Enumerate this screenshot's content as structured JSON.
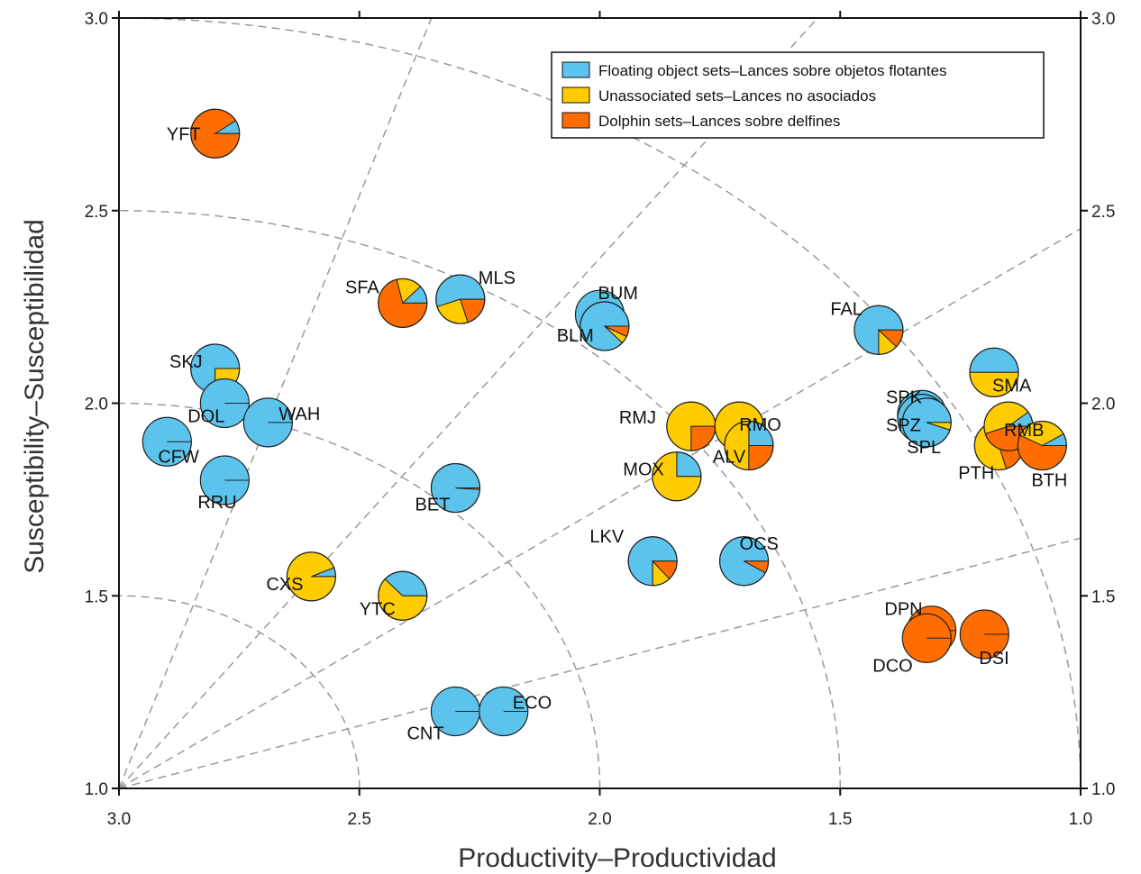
{
  "chart_data": {
    "type": "scatter",
    "subtype": "pie-markers",
    "xlabel": "Productivity–Productividad",
    "ylabel": "Susceptibility–Susceptibilidad",
    "xlim": [
      3.0,
      1.0
    ],
    "ylim": [
      1.0,
      3.0
    ],
    "x_reversed": true,
    "x_ticks": [
      "3.0",
      "2.5",
      "2.0",
      "1.5",
      "1.0"
    ],
    "y_ticks": [
      "1.0",
      "1.5",
      "2.0",
      "2.5",
      "3.0"
    ],
    "grid": "dashed risk arcs and rays from origin (3.0, 1.0)",
    "legend_position": "top-right",
    "colors": {
      "floating": "#5bc3ec",
      "unassociated": "#ffcc00",
      "dolphin": "#ff6d00"
    },
    "series": [
      {
        "key": "floating",
        "name": "Floating object sets",
        "name_es": "–Lances sobre objetos flotantes"
      },
      {
        "key": "unassociated",
        "name": "Unassociated sets",
        "name_es": "–Lances no asociados"
      },
      {
        "key": "dolphin",
        "name": "Dolphin sets",
        "name_es": "–Lances sobre delfines"
      }
    ],
    "points": [
      {
        "label": "YFT",
        "x": 2.8,
        "y": 2.7,
        "shares": {
          "floating": 0.09,
          "unassociated": 0.0,
          "dolphin": 0.91
        }
      },
      {
        "label": "SFA",
        "x": 2.41,
        "y": 2.26,
        "shares": {
          "floating": 0.12,
          "unassociated": 0.17,
          "dolphin": 0.71
        }
      },
      {
        "label": "MLS",
        "x": 2.29,
        "y": 2.27,
        "shares": {
          "floating": 0.55,
          "unassociated": 0.25,
          "dolphin": 0.2
        }
      },
      {
        "label": "BUM",
        "x": 2.0,
        "y": 2.23,
        "shares": {
          "floating": 1.0,
          "unassociated": 0.0,
          "dolphin": 0.0
        }
      },
      {
        "label": "BLM",
        "x": 1.99,
        "y": 2.2,
        "shares": {
          "floating": 0.88,
          "unassociated": 0.05,
          "dolphin": 0.07
        }
      },
      {
        "label": "FAL",
        "x": 1.42,
        "y": 2.19,
        "shares": {
          "floating": 0.75,
          "unassociated": 0.13,
          "dolphin": 0.12
        }
      },
      {
        "label": "SKJ",
        "x": 2.8,
        "y": 2.09,
        "shares": {
          "floating": 0.75,
          "unassociated": 0.25,
          "dolphin": 0.0
        }
      },
      {
        "label": "DOL",
        "x": 2.78,
        "y": 2.0,
        "shares": {
          "floating": 1.0,
          "unassociated": 0.0,
          "dolphin": 0.0
        }
      },
      {
        "label": "WAH",
        "x": 2.69,
        "y": 1.95,
        "shares": {
          "floating": 1.0,
          "unassociated": 0.0,
          "dolphin": 0.0
        }
      },
      {
        "label": "CFW",
        "x": 2.9,
        "y": 1.9,
        "shares": {
          "floating": 1.0,
          "unassociated": 0.0,
          "dolphin": 0.0
        }
      },
      {
        "label": "RRU",
        "x": 2.78,
        "y": 1.8,
        "shares": {
          "floating": 1.0,
          "unassociated": 0.0,
          "dolphin": 0.0
        }
      },
      {
        "label": "BET",
        "x": 2.3,
        "y": 1.78,
        "shares": {
          "floating": 0.99,
          "unassociated": 0.0,
          "dolphin": 0.01
        }
      },
      {
        "label": "RMJ",
        "x": 1.81,
        "y": 1.94,
        "shares": {
          "floating": 0.0,
          "unassociated": 0.75,
          "dolphin": 0.25
        }
      },
      {
        "label": "RMO",
        "x": 1.71,
        "y": 1.94,
        "shares": {
          "floating": 0.0,
          "unassociated": 0.8,
          "dolphin": 0.2
        }
      },
      {
        "label": "ALV",
        "x": 1.69,
        "y": 1.89,
        "shares": {
          "floating": 0.25,
          "unassociated": 0.5,
          "dolphin": 0.25
        }
      },
      {
        "label": "MOX",
        "x": 1.84,
        "y": 1.81,
        "shares": {
          "floating": 0.25,
          "unassociated": 0.75,
          "dolphin": 0.0
        }
      },
      {
        "label": "SPK",
        "x": 1.33,
        "y": 1.97,
        "shares": {
          "floating": 0.95,
          "unassociated": 0.03,
          "dolphin": 0.02
        }
      },
      {
        "label": "SPZ",
        "x": 1.33,
        "y": 1.96,
        "shares": {
          "floating": 0.97,
          "unassociated": 0.03,
          "dolphin": 0.0
        }
      },
      {
        "label": "SPL",
        "x": 1.32,
        "y": 1.95,
        "shares": {
          "floating": 0.95,
          "unassociated": 0.05,
          "dolphin": 0.0
        }
      },
      {
        "label": "SMA",
        "x": 1.18,
        "y": 2.08,
        "shares": {
          "floating": 0.5,
          "unassociated": 0.5,
          "dolphin": 0.0
        }
      },
      {
        "label": "PTH",
        "x": 1.17,
        "y": 1.89,
        "shares": {
          "floating": 0.15,
          "unassociated": 0.65,
          "dolphin": 0.2
        }
      },
      {
        "label": "RMB",
        "x": 1.15,
        "y": 1.94,
        "shares": {
          "floating": 0.1,
          "unassociated": 0.45,
          "dolphin": 0.45
        }
      },
      {
        "label": "BTH",
        "x": 1.08,
        "y": 1.89,
        "shares": {
          "floating": 0.08,
          "unassociated": 0.35,
          "dolphin": 0.57
        }
      },
      {
        "label": "LKV",
        "x": 1.89,
        "y": 1.59,
        "shares": {
          "floating": 0.75,
          "unassociated": 0.12,
          "dolphin": 0.13
        }
      },
      {
        "label": "OCS",
        "x": 1.7,
        "y": 1.59,
        "shares": {
          "floating": 0.92,
          "unassociated": 0.0,
          "dolphin": 0.08
        }
      },
      {
        "label": "CXS",
        "x": 2.6,
        "y": 1.55,
        "shares": {
          "floating": 0.06,
          "unassociated": 0.94,
          "dolphin": 0.0
        }
      },
      {
        "label": "YTC",
        "x": 2.41,
        "y": 1.5,
        "shares": {
          "floating": 0.38,
          "unassociated": 0.62,
          "dolphin": 0.0
        }
      },
      {
        "label": "DPN",
        "x": 1.31,
        "y": 1.41,
        "shares": {
          "floating": 0.0,
          "unassociated": 0.0,
          "dolphin": 1.0
        }
      },
      {
        "label": "DCO",
        "x": 1.32,
        "y": 1.39,
        "shares": {
          "floating": 0.0,
          "unassociated": 0.0,
          "dolphin": 1.0
        }
      },
      {
        "label": "DSI",
        "x": 1.2,
        "y": 1.4,
        "shares": {
          "floating": 0.0,
          "unassociated": 0.0,
          "dolphin": 1.0
        }
      },
      {
        "label": "CNT",
        "x": 2.3,
        "y": 1.2,
        "shares": {
          "floating": 1.0,
          "unassociated": 0.0,
          "dolphin": 0.0
        }
      },
      {
        "label": "ECO",
        "x": 2.2,
        "y": 1.2,
        "shares": {
          "floating": 1.0,
          "unassociated": 0.0,
          "dolphin": 0.0
        }
      }
    ]
  }
}
